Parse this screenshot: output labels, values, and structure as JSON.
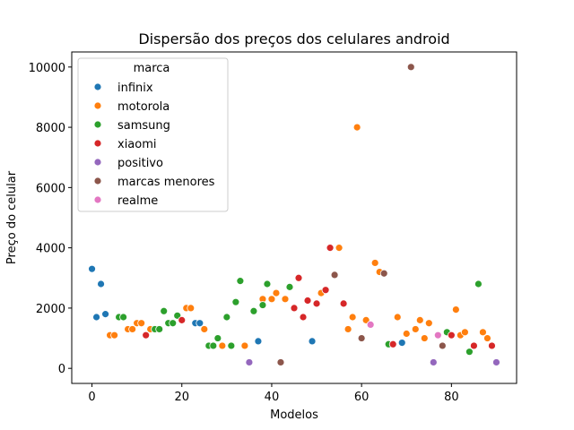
{
  "chart_data": {
    "type": "scatter",
    "title": "Dispersão dos preços dos celulares android",
    "xlabel": "Modelos",
    "ylabel": "Preço do celular",
    "xlim": [
      -4.5,
      94.5
    ],
    "ylim": [
      -500,
      10500
    ],
    "xticks": [
      0,
      20,
      40,
      60,
      80
    ],
    "yticks": [
      0,
      2000,
      4000,
      6000,
      8000,
      10000
    ],
    "grid": false,
    "legend": {
      "title": "marca",
      "position": "top-left"
    },
    "series": [
      {
        "name": "infinix",
        "color": "#1f77b4",
        "points": [
          [
            0,
            3300
          ],
          [
            1,
            1700
          ],
          [
            2,
            2800
          ],
          [
            3,
            1800
          ],
          [
            23,
            1500
          ],
          [
            24,
            1500
          ],
          [
            37,
            900
          ],
          [
            49,
            900
          ],
          [
            69,
            850
          ]
        ]
      },
      {
        "name": "motorola",
        "color": "#ff7f0e",
        "points": [
          [
            4,
            1100
          ],
          [
            5,
            1100
          ],
          [
            8,
            1300
          ],
          [
            9,
            1300
          ],
          [
            10,
            1500
          ],
          [
            11,
            1500
          ],
          [
            13,
            1300
          ],
          [
            21,
            2000
          ],
          [
            22,
            2000
          ],
          [
            25,
            1300
          ],
          [
            29,
            750
          ],
          [
            34,
            750
          ],
          [
            38,
            2300
          ],
          [
            40,
            2300
          ],
          [
            41,
            2500
          ],
          [
            43,
            2300
          ],
          [
            51,
            2500
          ],
          [
            55,
            4000
          ],
          [
            57,
            1300
          ],
          [
            58,
            1700
          ],
          [
            59,
            8000
          ],
          [
            61,
            1600
          ],
          [
            63,
            3500
          ],
          [
            64,
            3200
          ],
          [
            68,
            1700
          ],
          [
            70,
            1150
          ],
          [
            72,
            1300
          ],
          [
            73,
            1600
          ],
          [
            74,
            1000
          ],
          [
            75,
            1500
          ],
          [
            81,
            1950
          ],
          [
            82,
            1100
          ],
          [
            83,
            1200
          ],
          [
            87,
            1200
          ],
          [
            88,
            1000
          ]
        ]
      },
      {
        "name": "samsung",
        "color": "#2ca02c",
        "points": [
          [
            6,
            1700
          ],
          [
            7,
            1700
          ],
          [
            14,
            1300
          ],
          [
            15,
            1300
          ],
          [
            16,
            1900
          ],
          [
            17,
            1500
          ],
          [
            18,
            1500
          ],
          [
            19,
            1750
          ],
          [
            26,
            750
          ],
          [
            27,
            750
          ],
          [
            28,
            1000
          ],
          [
            30,
            1700
          ],
          [
            31,
            750
          ],
          [
            32,
            2200
          ],
          [
            33,
            2900
          ],
          [
            36,
            1900
          ],
          [
            38,
            2100
          ],
          [
            39,
            2800
          ],
          [
            44,
            2700
          ],
          [
            66,
            800
          ],
          [
            79,
            1200
          ],
          [
            84,
            550
          ],
          [
            86,
            2800
          ]
        ]
      },
      {
        "name": "xiaomi",
        "color": "#d62728",
        "points": [
          [
            12,
            1100
          ],
          [
            20,
            1600
          ],
          [
            45,
            2000
          ],
          [
            46,
            3000
          ],
          [
            47,
            1700
          ],
          [
            48,
            2250
          ],
          [
            50,
            2150
          ],
          [
            52,
            2600
          ],
          [
            53,
            4000
          ],
          [
            56,
            2150
          ],
          [
            67,
            800
          ],
          [
            80,
            1100
          ],
          [
            85,
            750
          ],
          [
            89,
            750
          ]
        ]
      },
      {
        "name": "positivo",
        "color": "#9467bd",
        "points": [
          [
            35,
            200
          ],
          [
            76,
            200
          ],
          [
            90,
            200
          ]
        ]
      },
      {
        "name": "marcas menores",
        "color": "#8c564b",
        "points": [
          [
            42,
            200
          ],
          [
            54,
            3100
          ],
          [
            60,
            1000
          ],
          [
            65,
            3150
          ],
          [
            71,
            10000
          ],
          [
            78,
            750
          ]
        ]
      },
      {
        "name": "realme",
        "color": "#e377c2",
        "points": [
          [
            62,
            1450
          ],
          [
            77,
            1100
          ]
        ]
      }
    ]
  }
}
